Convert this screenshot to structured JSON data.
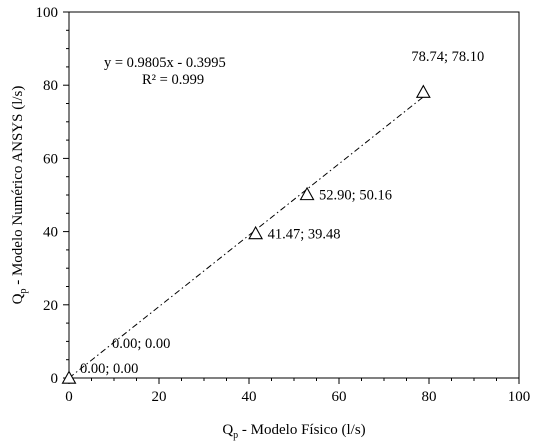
{
  "chart_data": {
    "type": "scatter",
    "xlabel": "Q",
    "xlabel_sub": "p",
    "xlabel_rest": " - Modelo Físico (l/s)",
    "ylabel": "Q",
    "ylabel_sub": "p",
    "ylabel_rest": " - Modelo Numérico ANSYS  (l/s)",
    "xlim": [
      0,
      100
    ],
    "ylim": [
      0,
      100
    ],
    "x_ticks": [
      0,
      20,
      40,
      60,
      80,
      100
    ],
    "y_ticks": [
      0,
      20,
      40,
      60,
      80,
      100
    ],
    "x_tick_labels": [
      "0",
      "20",
      "40",
      "60",
      "80",
      "100"
    ],
    "y_tick_labels": [
      "0",
      "20",
      "40",
      "60",
      "80",
      "100"
    ],
    "grid": false,
    "marker": "open-triangle",
    "points": [
      {
        "x": 0.0,
        "y": 0.0,
        "label": "0.00; 0.00"
      },
      {
        "x": 0.0,
        "y": 0.0,
        "label": "0.00; 0.00"
      },
      {
        "x": 41.47,
        "y": 39.48,
        "label": "41.47; 39.48"
      },
      {
        "x": 52.9,
        "y": 50.16,
        "label": "52.90; 50.16"
      },
      {
        "x": 78.74,
        "y": 78.1,
        "label": "78.74; 78.10"
      }
    ],
    "trendline": {
      "type": "linear",
      "slope": 0.9805,
      "intercept": -0.3995,
      "x_range": [
        0,
        78.74
      ],
      "style": "dash-dot",
      "equation": "y = 0.9805x - 0.3995",
      "r2": "R² = 0.999"
    }
  }
}
